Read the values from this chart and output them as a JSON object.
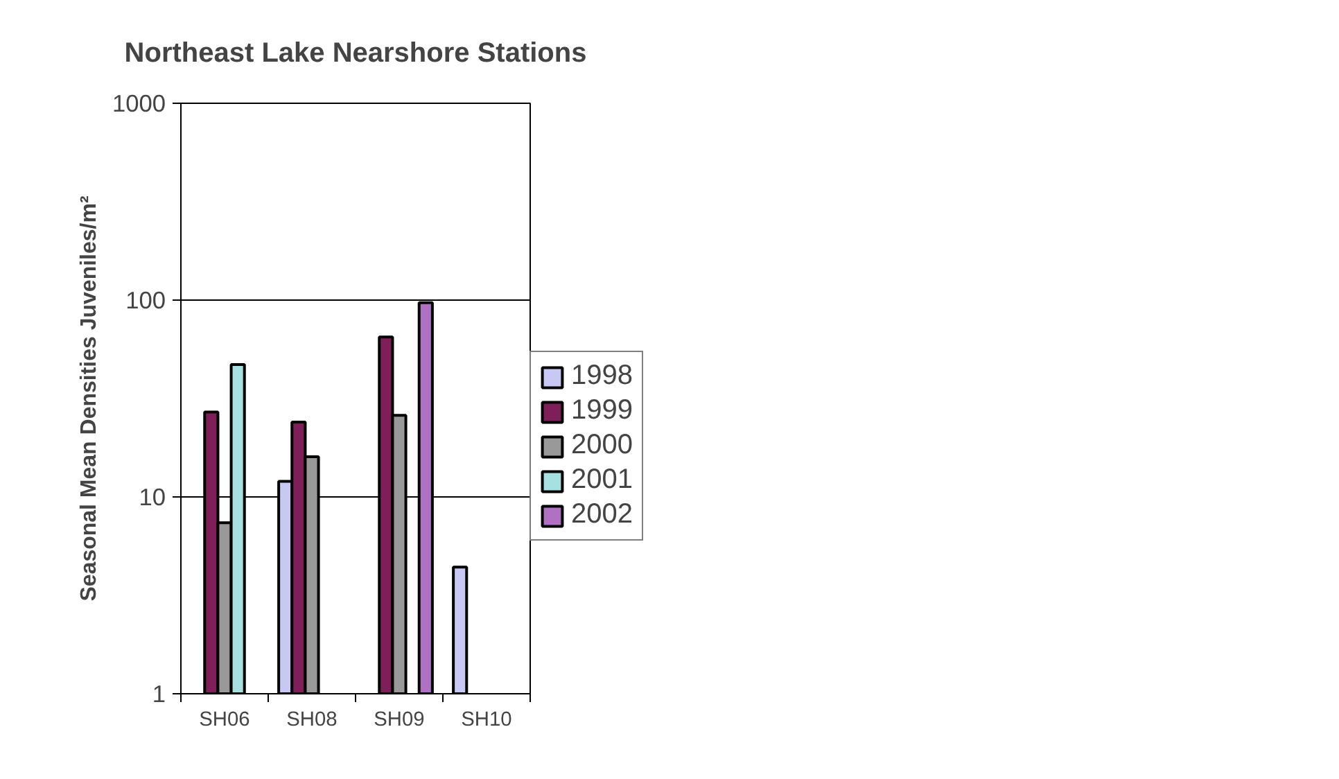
{
  "chart_data": {
    "type": "bar",
    "title": "Northeast Lake Nearshore Stations",
    "ylabel": "Seasonal Mean Densities Juveniles/m²",
    "categories": [
      "SH06",
      "SH08",
      "SH09",
      "SH10"
    ],
    "series": [
      {
        "name": "1998",
        "color": "#c8c8f4",
        "values": [
          null,
          12.0,
          null,
          4.4
        ]
      },
      {
        "name": "1999",
        "color": "#7f1f5a",
        "values": [
          27,
          24,
          65,
          null
        ]
      },
      {
        "name": "2000",
        "color": "#999999",
        "values": [
          7.4,
          16,
          26,
          null
        ]
      },
      {
        "name": "2001",
        "color": "#a6e0e0",
        "values": [
          47,
          null,
          null,
          null
        ]
      },
      {
        "name": "2002",
        "color": "#b070c4",
        "values": [
          null,
          null,
          97,
          null
        ]
      }
    ],
    "log": "y",
    "ylim": [
      1,
      1000
    ],
    "yticks": [
      1,
      10,
      100,
      1000
    ],
    "grid": "y",
    "legend": "right"
  }
}
